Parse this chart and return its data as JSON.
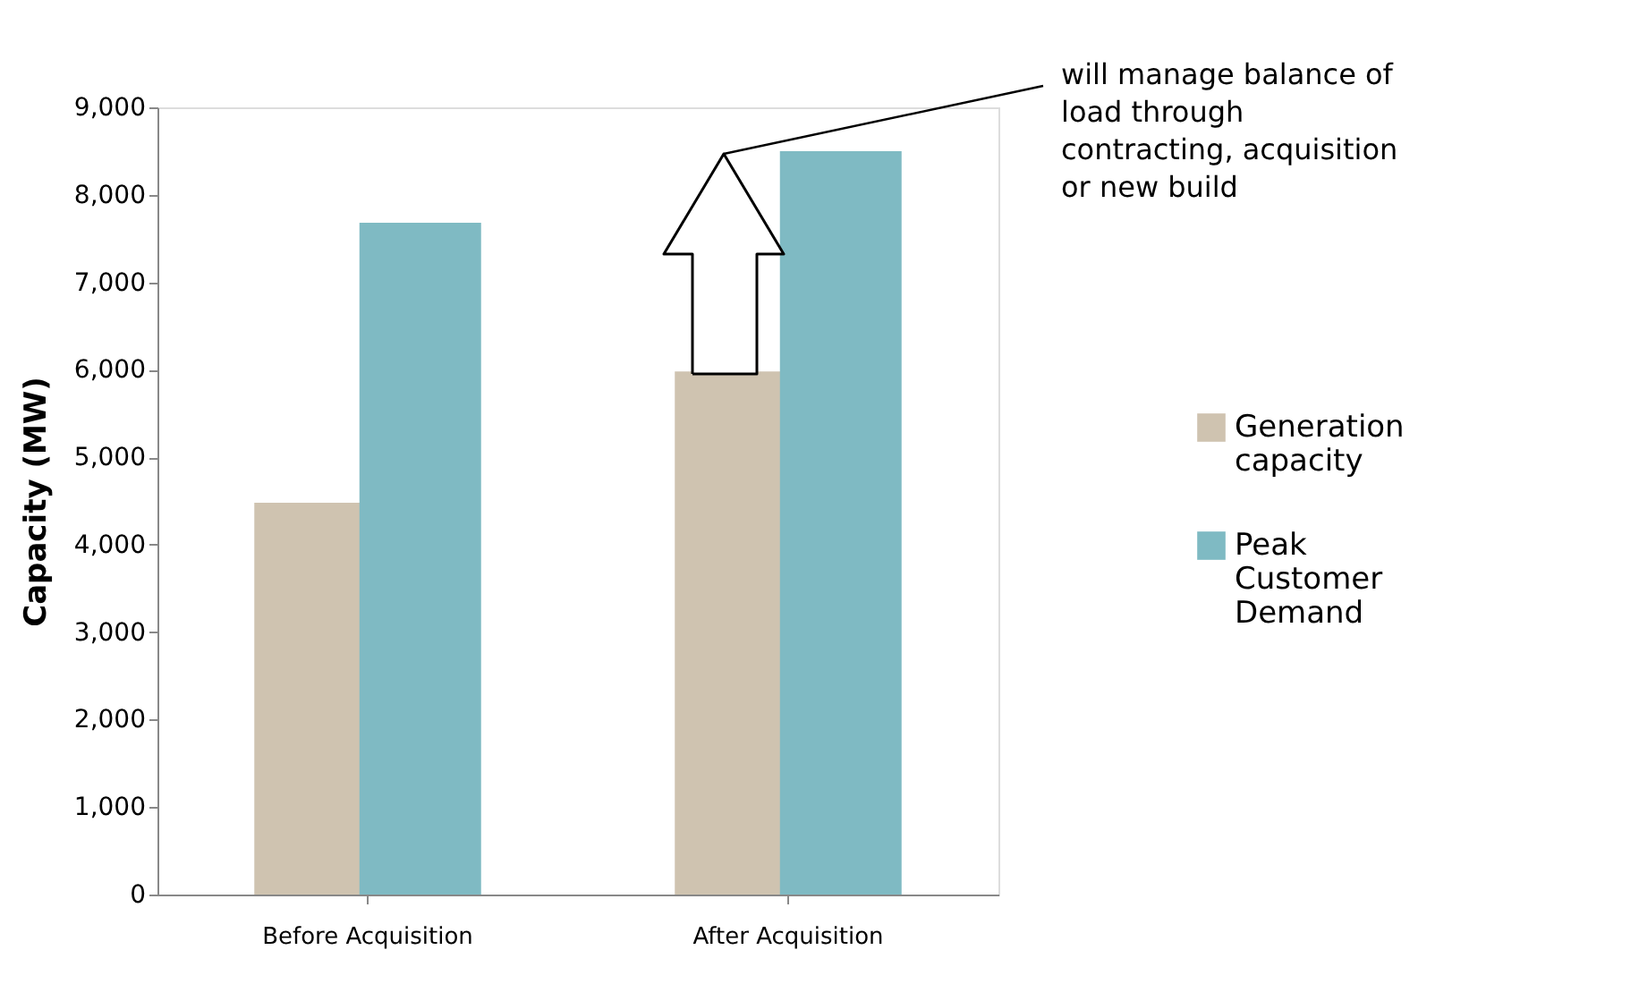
{
  "chart_data": {
    "type": "bar",
    "ylabel": "Capacity (MW)",
    "categories": [
      "Before Acquisition",
      "After Acquisition"
    ],
    "series": [
      {
        "name": "Generation capacity",
        "color": "#cfc3b0",
        "values": [
          4480,
          5980
        ]
      },
      {
        "name": "Peak Customer Demand",
        "color": "#7fbac3",
        "values": [
          7680,
          8500
        ]
      }
    ],
    "ylim": [
      0,
      9000
    ],
    "yticks": [
      {
        "value": 0,
        "label": "0"
      },
      {
        "value": 1000,
        "label": "1,000"
      },
      {
        "value": 2000,
        "label": "2,000"
      },
      {
        "value": 3000,
        "label": "3,000"
      },
      {
        "value": 4000,
        "label": "4,000"
      },
      {
        "value": 5000,
        "label": "5,000"
      },
      {
        "value": 6000,
        "label": "6,000"
      },
      {
        "value": 7000,
        "label": "7,000"
      },
      {
        "value": 8000,
        "label": "8,000"
      },
      {
        "value": 9000,
        "label": "9,000"
      }
    ],
    "grid": false,
    "legend": "right",
    "annotations": [
      "will manage balance of load through contracting, acquisition or new build"
    ]
  }
}
